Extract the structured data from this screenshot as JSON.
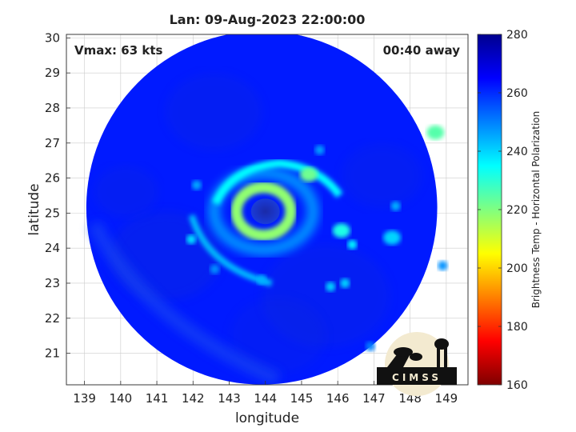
{
  "chart_data": {
    "type": "heatmap",
    "title": "Lan: 09-Aug-2023 22:00:00",
    "xlabel": "longitude",
    "ylabel": "latitude",
    "xlim": [
      138.5,
      149.6
    ],
    "ylim": [
      20.1,
      30.1
    ],
    "xticks": [
      139,
      140,
      141,
      142,
      143,
      144,
      145,
      146,
      147,
      148,
      149
    ],
    "yticks": [
      21,
      22,
      23,
      24,
      25,
      26,
      27,
      28,
      29,
      30
    ],
    "grid": true,
    "annotations": {
      "vmax": "Vmax: 63 kts",
      "time_offset": "00:40 away"
    },
    "colorbar": {
      "label": "Brightness Temp - Horizontal Polarization",
      "range": [
        160,
        280
      ],
      "ticks": [
        160,
        180,
        200,
        220,
        240,
        260,
        280
      ],
      "colormap": [
        "#7f0000",
        "#ff0000",
        "#ff8000",
        "#ffff00",
        "#80ff80",
        "#00ffff",
        "#0080ff",
        "#0000ff",
        "#00008f"
      ]
    },
    "swath": {
      "center": [
        143.9,
        25.15
      ],
      "radius_deg": 4.85
    },
    "background_temp": 262,
    "features": [
      {
        "name": "eye",
        "lon": 144.0,
        "lat": 25.05,
        "temp": 270
      },
      {
        "name": "eyewall",
        "lon": 143.95,
        "lat": 25.05,
        "temp": 218
      },
      {
        "name": "band",
        "lon": 145.2,
        "lat": 26.1,
        "temp": 222
      },
      {
        "name": "band",
        "lon": 146.1,
        "lat": 24.5,
        "temp": 232
      },
      {
        "name": "band",
        "lon": 148.7,
        "lat": 27.3,
        "temp": 225
      },
      {
        "name": "band",
        "lon": 147.5,
        "lat": 24.3,
        "temp": 240
      }
    ]
  },
  "logo": {
    "text": "CIMSS"
  }
}
